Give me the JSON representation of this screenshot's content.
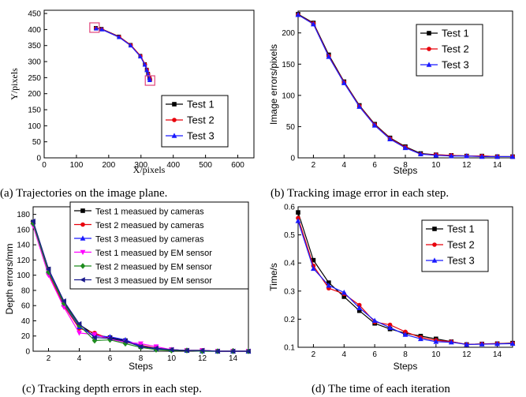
{
  "colors": {
    "test1": "#000000",
    "test2": "#e8000b",
    "test3": "#1a1aff",
    "em1": "#ff00ff",
    "em2": "#1e8c1e",
    "em3": "#1a1a8c",
    "marker_box": "#e0457b"
  },
  "captions": {
    "a": "(a) Trajectories on the image plane.",
    "b": "(b) Tracking image error in each step.",
    "c": "(c) Tracking depth errors in each step.",
    "d": "(d) The time of each iteration"
  },
  "chart_data": [
    {
      "id": "a",
      "type": "scatter",
      "xlabel": "X/pixels",
      "ylabel": "Y/pixels",
      "xlim": [
        0,
        650
      ],
      "ylim": [
        0,
        460
      ],
      "xticks": [
        0,
        100,
        200,
        300,
        400,
        500,
        600
      ],
      "yticks": [
        0,
        50,
        100,
        150,
        200,
        250,
        300,
        350,
        400,
        450
      ],
      "legend_position": "bottom-right",
      "series": [
        {
          "name": "Test 1",
          "color": "test1",
          "marker": "square",
          "x": [
            160,
            178,
            232,
            268,
            298,
            312,
            318,
            322,
            326,
            328
          ],
          "y": [
            405,
            402,
            378,
            352,
            318,
            292,
            275,
            262,
            250,
            244
          ]
        },
        {
          "name": "Test 2",
          "color": "test2",
          "marker": "circle",
          "x": [
            160,
            179,
            233,
            269,
            299,
            313,
            319,
            323,
            327,
            329
          ],
          "y": [
            404,
            401,
            377,
            351,
            317,
            291,
            274,
            261,
            249,
            243
          ]
        },
        {
          "name": "Test 3",
          "color": "test3",
          "marker": "triangle",
          "x": [
            161,
            179,
            232,
            268,
            298,
            312,
            318,
            322,
            326,
            327
          ],
          "y": [
            403,
            400,
            376,
            350,
            316,
            290,
            273,
            260,
            248,
            242
          ]
        }
      ],
      "highlight_boxes": [
        {
          "x": 156,
          "y": 406
        },
        {
          "x": 328,
          "y": 241
        }
      ]
    },
    {
      "id": "b",
      "type": "line",
      "xlabel": "Steps",
      "ylabel": "Image errors/pixels",
      "xlim": [
        1,
        15
      ],
      "ylim": [
        0,
        235
      ],
      "xticks": [
        2,
        4,
        6,
        8,
        10,
        12,
        14
      ],
      "yticks": [
        0,
        50,
        100,
        150,
        200
      ],
      "legend_position": "top-right",
      "x": [
        1,
        2,
        3,
        4,
        5,
        6,
        7,
        8,
        9,
        10,
        11,
        12,
        13,
        14,
        15
      ],
      "series": [
        {
          "name": "Test 1",
          "color": "test1",
          "marker": "square",
          "values": [
            230,
            216,
            165,
            122,
            84,
            54,
            32,
            18,
            7,
            5,
            4,
            3,
            3,
            2,
            2
          ]
        },
        {
          "name": "Test 2",
          "color": "test2",
          "marker": "circle",
          "values": [
            229,
            215,
            163,
            121,
            83,
            53,
            31,
            17,
            6,
            5,
            4,
            3,
            3,
            2,
            2
          ]
        },
        {
          "name": "Test 3",
          "color": "test3",
          "marker": "triangle",
          "values": [
            229,
            214,
            162,
            120,
            82,
            52,
            30,
            16,
            6,
            4,
            3,
            3,
            2,
            2,
            2
          ]
        }
      ]
    },
    {
      "id": "c",
      "type": "line",
      "xlabel": "Steps",
      "ylabel": "Depth errors/mm",
      "xlim": [
        1,
        15
      ],
      "ylim": [
        0,
        190
      ],
      "xticks": [
        2,
        4,
        6,
        8,
        10,
        12,
        14
      ],
      "yticks": [
        0,
        20,
        40,
        60,
        80,
        100,
        120,
        140,
        160,
        180
      ],
      "legend_position": "top-right",
      "x": [
        1,
        2,
        3,
        4,
        5,
        6,
        7,
        8,
        9,
        10,
        11,
        12,
        13,
        14,
        15
      ],
      "series": [
        {
          "name": "Test 1 measued by cameras",
          "color": "test1",
          "marker": "square",
          "values": [
            170,
            108,
            65,
            35,
            22,
            18,
            14,
            6,
            3,
            2,
            1,
            1,
            0,
            0,
            0
          ]
        },
        {
          "name": "Test 2 measued by cameras",
          "color": "test2",
          "marker": "circle",
          "values": [
            169,
            102,
            60,
            30,
            24,
            16,
            12,
            8,
            4,
            2,
            1,
            1,
            0,
            0,
            0
          ]
        },
        {
          "name": "Test 3 measued by cameras",
          "color": "test3",
          "marker": "triangle",
          "values": [
            170,
            106,
            62,
            32,
            20,
            19,
            15,
            7,
            3,
            2,
            1,
            0,
            0,
            0,
            0
          ]
        },
        {
          "name": "Test 1 measued by EM sensor",
          "color": "em1",
          "marker": "triangle-down",
          "values": [
            165,
            100,
            58,
            24,
            22,
            16,
            12,
            10,
            6,
            2,
            1,
            1,
            0,
            0,
            0
          ]
        },
        {
          "name": "Test 2 measued by EM sensor",
          "color": "em2",
          "marker": "diamond",
          "values": [
            168,
            104,
            63,
            34,
            14,
            15,
            10,
            5,
            2,
            1,
            1,
            0,
            0,
            0,
            0
          ]
        },
        {
          "name": "Test 3 measued by EM sensor",
          "color": "em3",
          "marker": "triangle-left",
          "values": [
            171,
            108,
            66,
            36,
            18,
            17,
            13,
            6,
            4,
            2,
            1,
            1,
            0,
            0,
            0
          ]
        }
      ]
    },
    {
      "id": "d",
      "type": "line",
      "xlabel": "Steps",
      "ylabel": "Time/s",
      "xlim": [
        1,
        15
      ],
      "ylim": [
        0.1,
        0.6
      ],
      "xticks": [
        2,
        4,
        6,
        8,
        10,
        12,
        14
      ],
      "yticks": [
        0.1,
        0.2,
        0.3,
        0.4,
        0.5,
        0.6
      ],
      "legend_position": "top-right",
      "x": [
        1,
        2,
        3,
        4,
        5,
        6,
        7,
        8,
        9,
        10,
        11,
        12,
        13,
        14,
        15
      ],
      "series": [
        {
          "name": "Test 1",
          "color": "test1",
          "marker": "square",
          "values": [
            0.58,
            0.41,
            0.33,
            0.28,
            0.23,
            0.185,
            0.165,
            0.15,
            0.14,
            0.13,
            0.12,
            0.11,
            0.112,
            0.113,
            0.115
          ]
        },
        {
          "name": "Test 2",
          "color": "test2",
          "marker": "circle",
          "values": [
            0.56,
            0.39,
            0.31,
            0.29,
            0.25,
            0.19,
            0.18,
            0.155,
            0.135,
            0.125,
            0.12,
            0.11,
            0.112,
            0.113,
            0.114
          ]
        },
        {
          "name": "Test 3",
          "color": "test3",
          "marker": "triangle",
          "values": [
            0.55,
            0.38,
            0.32,
            0.295,
            0.24,
            0.195,
            0.17,
            0.145,
            0.13,
            0.12,
            0.118,
            0.11,
            0.111,
            0.112,
            0.113
          ]
        }
      ]
    }
  ]
}
